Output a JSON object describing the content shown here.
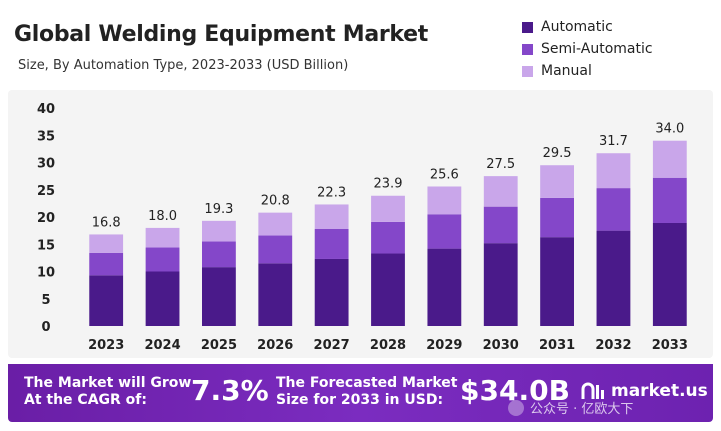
{
  "header": {
    "title": "Global Welding Equipment Market",
    "subtitle": "Size, By Automation Type, 2023-2033 (USD Billion)"
  },
  "colors": {
    "automatic": "#4a1a8a",
    "semi_automatic": "#8447c9",
    "manual": "#c9a6ea",
    "footer": "#7226b8"
  },
  "chart_data": {
    "type": "bar",
    "stacked": true,
    "title": "Global Welding Equipment Market",
    "subtitle": "Size, By Automation Type, 2023-2033 (USD Billion)",
    "xlabel": "",
    "ylabel": "",
    "ylim": [
      0,
      40
    ],
    "yticks": [
      0,
      5,
      10,
      15,
      20,
      25,
      30,
      35,
      40
    ],
    "grid": false,
    "legend_position": "top-right",
    "categories": [
      "2023",
      "2024",
      "2025",
      "2026",
      "2027",
      "2028",
      "2029",
      "2030",
      "2031",
      "2032",
      "2033"
    ],
    "series": [
      {
        "name": "Automatic",
        "values": [
          9.3,
          10.0,
          10.8,
          11.5,
          12.3,
          13.3,
          14.2,
          15.2,
          16.3,
          17.5,
          18.9
        ]
      },
      {
        "name": "Semi-Automatic",
        "values": [
          4.1,
          4.4,
          4.7,
          5.1,
          5.5,
          5.8,
          6.3,
          6.7,
          7.2,
          7.8,
          8.3
        ]
      },
      {
        "name": "Manual",
        "values": [
          3.4,
          3.6,
          3.8,
          4.2,
          4.5,
          4.8,
          5.1,
          5.6,
          6.0,
          6.4,
          6.8
        ]
      }
    ],
    "totals": [
      "16.8",
      "18.0",
      "19.3",
      "20.8",
      "22.3",
      "23.9",
      "25.6",
      "27.5",
      "29.5",
      "31.7",
      "34.0"
    ]
  },
  "footer": {
    "cagr_label_line1": "The Market will Grow",
    "cagr_label_line2": "At the CAGR of:",
    "cagr_value": "7.3%",
    "forecast_label_line1": "The Forecasted Market",
    "forecast_label_line2": "Size for 2033 in USD:",
    "forecast_value": "$34.0B",
    "logo_text": "market.us",
    "watermark_text": "公众号 · 亿欧大下"
  }
}
